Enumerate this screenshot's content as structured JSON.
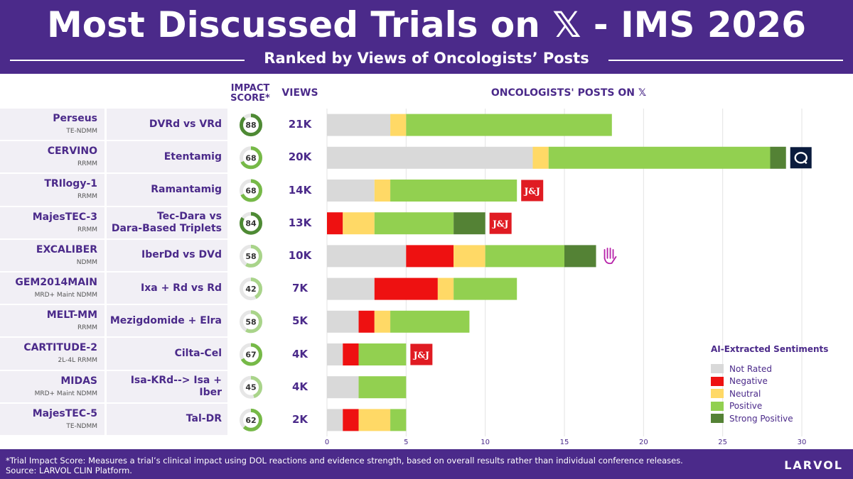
{
  "header": {
    "title": "Most Discussed Trials on 𝕏 - IMS 2026",
    "subtitle": "Ranked by Views of Oncologists’ Posts"
  },
  "columns": {
    "impact": "IMPACT SCORE*",
    "views": "VIEWS",
    "posts": "ONCOLOGISTS' POSTS ON 𝕏"
  },
  "legend": {
    "title": "AI-Extracted Sentiments",
    "items": [
      {
        "label": "Not Rated",
        "color": "#d9d9d9"
      },
      {
        "label": "Negative",
        "color": "#ee1111"
      },
      {
        "label": "Neutral",
        "color": "#ffd966"
      },
      {
        "label": "Positive",
        "color": "#92d050"
      },
      {
        "label": "Strong Positive",
        "color": "#548235"
      }
    ]
  },
  "badges": {
    "jnj": "J&J"
  },
  "chart_data": {
    "type": "bar",
    "orientation": "horizontal",
    "stacked": true,
    "title": "ONCOLOGISTS' POSTS ON 𝕏",
    "xlim": [
      0,
      30
    ],
    "xticks": [
      0,
      5,
      10,
      15,
      20,
      25,
      30
    ],
    "grid": true,
    "legend_position": "bottom-right",
    "series_names": [
      "Not Rated",
      "Negative",
      "Neutral",
      "Positive",
      "Strong Positive"
    ],
    "rows": [
      {
        "trial": "Perseus",
        "indication": "TE-NDMM",
        "drug": "DVRd vs VRd",
        "impact": 88,
        "views": "21K",
        "values": [
          4,
          0,
          1,
          13,
          0
        ],
        "badge": "none"
      },
      {
        "trial": "CERVINO",
        "indication": "RRMM",
        "drug": "Etentamig",
        "impact": 68,
        "views": "20K",
        "values": [
          13,
          0,
          1,
          14,
          1
        ],
        "badge": "abbvie"
      },
      {
        "trial": "TRIlogy-1",
        "indication": "RRMM",
        "drug": "Ramantamig",
        "impact": 68,
        "views": "14K",
        "values": [
          3,
          0,
          1,
          8,
          0
        ],
        "badge": "jnj"
      },
      {
        "trial": "MajesTEC-3",
        "indication": "RRMM",
        "drug": "Tec-Dara vs Dara-Based Triplets",
        "impact": 84,
        "views": "13K",
        "values": [
          0,
          1,
          2,
          5,
          2
        ],
        "badge": "jnj"
      },
      {
        "trial": "EXCALIBER",
        "indication": "NDMM",
        "drug": "IberDd vs DVd",
        "impact": 58,
        "views": "10K",
        "values": [
          5,
          3,
          2,
          5,
          2
        ],
        "badge": "hand"
      },
      {
        "trial": "GEM2014MAIN",
        "indication": "MRD+ Maint NDMM",
        "drug": "Ixa + Rd vs Rd",
        "impact": 42,
        "views": "7K",
        "values": [
          3,
          4,
          1,
          4,
          0
        ],
        "badge": "none"
      },
      {
        "trial": "MELT-MM",
        "indication": "RRMM",
        "drug": "Mezigdomide + Elra",
        "impact": 58,
        "views": "5K",
        "values": [
          2,
          1,
          1,
          5,
          0
        ],
        "badge": "none"
      },
      {
        "trial": "CARTITUDE-2",
        "indication": "2L-4L RRMM",
        "drug": "Cilta-Cel",
        "impact": 67,
        "views": "4K",
        "values": [
          1,
          1,
          0,
          3,
          0
        ],
        "badge": "jnj"
      },
      {
        "trial": "MIDAS",
        "indication": "MRD+ Maint NDMM",
        "drug": "Isa-KRd--> Isa + Iber",
        "impact": 45,
        "views": "4K",
        "values": [
          2,
          0,
          0,
          3,
          0
        ],
        "badge": "none"
      },
      {
        "trial": "MajesTEC-5",
        "indication": "TE-NDMM",
        "drug": "Tal-DR",
        "impact": 62,
        "views": "2K",
        "values": [
          1,
          1,
          2,
          1,
          0
        ],
        "badge": "none"
      }
    ]
  },
  "footer": {
    "note": "*Trial Impact Score: Measures a trial’s clinical impact using DOL reactions and evidence strength, based on overall results rather than individual conference releases.",
    "source": "Source: LARVOL CLIN Platform.",
    "brand": "LARVOL"
  }
}
